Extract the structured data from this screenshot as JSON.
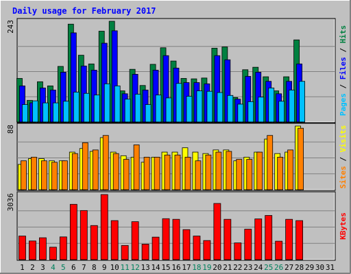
{
  "chart_data": {
    "type": "bar",
    "title": "Daily usage for February 2017",
    "days": [
      "1",
      "2",
      "3",
      "4",
      "5",
      "6",
      "7",
      "8",
      "9",
      "10",
      "11",
      "12",
      "13",
      "14",
      "15",
      "16",
      "17",
      "18",
      "19",
      "20",
      "21",
      "22",
      "23",
      "24",
      "25",
      "26",
      "27",
      "28",
      "29",
      "30",
      "31"
    ],
    "weekend_days": [
      4,
      5,
      11,
      12,
      18,
      19,
      25,
      26
    ],
    "colors": {
      "background": "#c0c0c0",
      "title": "#0000ff",
      "hits": "#008040",
      "files": "#0000ff",
      "pages": "#00c0ff",
      "visits": "#ffff00",
      "sites": "#ff8000",
      "kbytes": "#ff0000",
      "weekend_label": "#00805c"
    },
    "panels": [
      {
        "name": "hits-files-pages",
        "ymax_label": "243",
        "ymax": 243,
        "side_label": [
          {
            "text": "Pages",
            "color": "#00c0ff"
          },
          {
            "text": " / ",
            "color": "#000000"
          },
          {
            "text": "Files",
            "color": "#0000ff"
          },
          {
            "text": " / ",
            "color": "#000000"
          },
          {
            "text": "Hits",
            "color": "#008040"
          }
        ],
        "series": [
          {
            "name": "Hits",
            "color": "#008040",
            "values": [
              105,
              52,
              97,
              87,
              134,
              236,
              161,
              140,
              219,
              243,
              75,
              127,
              88,
              139,
              179,
              147,
              105,
              104,
              106,
              178,
              181,
              59,
              126,
              132,
              109,
              75,
              109,
              198,
              0,
              0,
              0
            ]
          },
          {
            "name": "Files",
            "color": "#0000ff",
            "values": [
              87,
              46,
              82,
              77,
              120,
              215,
              135,
              125,
              190,
              220,
              68,
              115,
              77,
              125,
              160,
              130,
              95,
              95,
              92,
              160,
              150,
              55,
              110,
              120,
              98,
              68,
              98,
              140,
              0,
              0,
              0
            ]
          },
          {
            "name": "Pages",
            "color": "#00c0ff",
            "values": [
              42,
              51,
              46,
              46,
              50,
              72,
              69,
              65,
              92,
              87,
              55,
              67,
              42,
              65,
              58,
              93,
              62,
              75,
              74,
              71,
              64,
              43,
              49,
              60,
              82,
              50,
              77,
              98,
              0,
              0,
              0
            ]
          }
        ]
      },
      {
        "name": "visits-sites",
        "ymax_label": "88",
        "ymax": 88,
        "side_label": [
          {
            "text": "Sites",
            "color": "#ff8000"
          },
          {
            "text": " / ",
            "color": "#000000"
          },
          {
            "text": "Visits",
            "color": "#ffff00"
          }
        ],
        "series": [
          {
            "name": "Visits",
            "color": "#ffff00",
            "values": [
              35,
              43,
              43,
              40,
              40,
              52,
              57,
              53,
              72,
              52,
              47,
              45,
              38,
              45,
              52,
              52,
              58,
              52,
              50,
              55,
              55,
              40,
              45,
              52,
              70,
              50,
              52,
              88,
              0,
              0,
              0
            ]
          },
          {
            "name": "Sites",
            "color": "#ff8000",
            "values": [
              40,
              45,
              40,
              38,
              40,
              50,
              65,
              55,
              75,
              50,
              42,
              62,
              45,
              45,
              48,
              48,
              45,
              40,
              48,
              52,
              53,
              42,
              42,
              52,
              75,
              45,
              55,
              85,
              0,
              0,
              0
            ]
          }
        ]
      },
      {
        "name": "kbytes",
        "ymax_label": "3036",
        "ymax": 3036,
        "side_label": [
          {
            "text": "KBytes",
            "color": "#ff0000"
          }
        ],
        "series": [
          {
            "name": "KBytes",
            "color": "#ff0000",
            "values": [
              1100,
              870,
              1020,
              580,
              1060,
              2580,
              2290,
              1590,
              3036,
              1820,
              660,
              1770,
              720,
              1050,
              1910,
              1880,
              1400,
              1100,
              890,
              2620,
              1880,
              780,
              1420,
              1900,
              2060,
              860,
              1880,
              1820,
              0,
              0,
              0
            ]
          }
        ]
      }
    ]
  }
}
